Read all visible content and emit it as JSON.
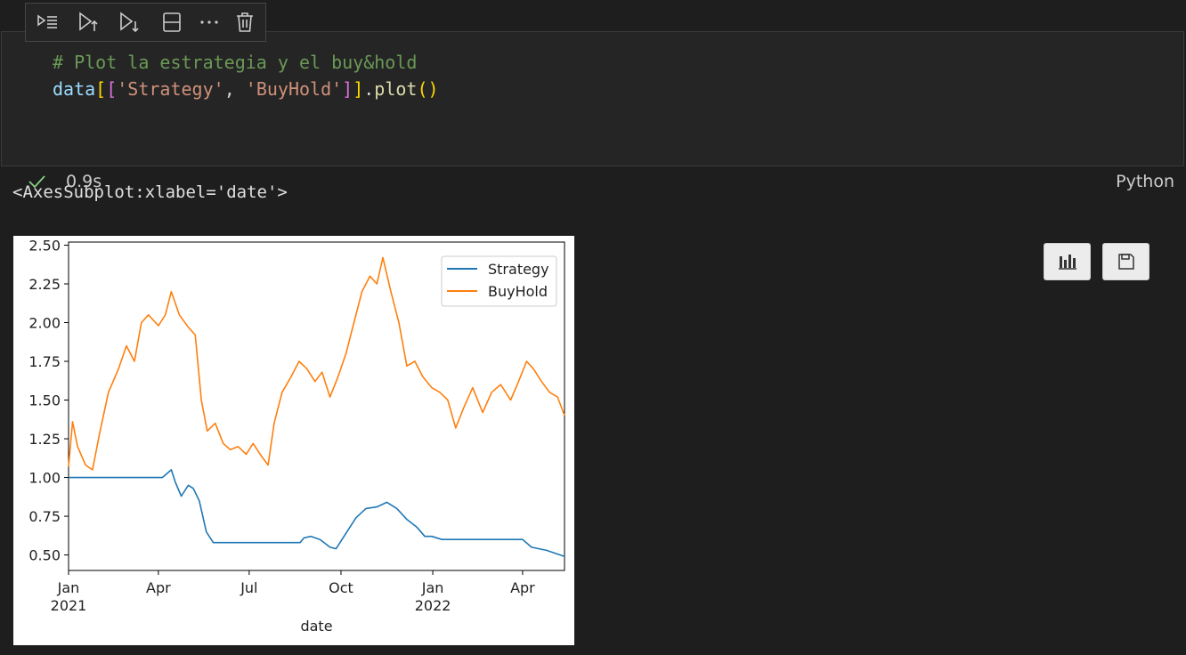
{
  "toolbar": {
    "items": [
      {
        "name": "execute-above-and-cell"
      },
      {
        "name": "execute-cell-and-above"
      },
      {
        "name": "execute-cell-and-below"
      },
      {
        "name": "split-cell"
      },
      {
        "name": "more-actions"
      },
      {
        "name": "delete-cell"
      }
    ]
  },
  "cell": {
    "code": {
      "comment": "# Plot la estrategia y el buy&hold",
      "var": "data",
      "open1": "[",
      "open2": "[",
      "str1": "'Strategy'",
      "comma": ", ",
      "str2": "'BuyHold'",
      "close2": "]",
      "close1": "]",
      "dot": ".",
      "fn": "plot",
      "paren": "()"
    },
    "status_time": "0.9s",
    "language": "Python",
    "colors": {
      "check": "#89d185"
    }
  },
  "output": {
    "text": "<AxesSubplot:xlabel='date'>"
  },
  "chart_data": {
    "type": "line",
    "xlabel": "date",
    "ylabel": "",
    "ylim": [
      0.4,
      2.52
    ],
    "yticks": [
      "0.50",
      "0.75",
      "1.00",
      "1.25",
      "1.50",
      "1.75",
      "2.00",
      "2.25",
      "2.50"
    ],
    "xticks": [
      {
        "label": "Jan",
        "sub": "2021",
        "date": "2021-01-01"
      },
      {
        "label": "Apr",
        "sub": "",
        "date": "2021-04-01"
      },
      {
        "label": "Jul",
        "sub": "",
        "date": "2021-07-01"
      },
      {
        "label": "Oct",
        "sub": "",
        "date": "2021-10-01"
      },
      {
        "label": "Jan",
        "sub": "2022",
        "date": "2022-01-01"
      },
      {
        "label": "Apr",
        "sub": "",
        "date": "2022-04-01"
      }
    ],
    "xlim": [
      "2021-01-01",
      "2022-05-13"
    ],
    "legend": "top-right",
    "grid": false,
    "series": [
      {
        "name": "Strategy",
        "color": "#1f77b4",
        "x": [
          "2021-01-01",
          "2021-02-15",
          "2021-04-05",
          "2021-04-14",
          "2021-04-18",
          "2021-04-24",
          "2021-05-01",
          "2021-05-06",
          "2021-05-12",
          "2021-05-19",
          "2021-05-26",
          "2021-06-10",
          "2021-07-15",
          "2021-08-21",
          "2021-08-25",
          "2021-09-01",
          "2021-09-10",
          "2021-09-20",
          "2021-09-26",
          "2021-10-06",
          "2021-10-16",
          "2021-10-26",
          "2021-11-06",
          "2021-11-16",
          "2021-11-26",
          "2021-12-06",
          "2021-12-16",
          "2021-12-24",
          "2021-12-31",
          "2022-01-10",
          "2022-02-15",
          "2022-03-20",
          "2022-04-01",
          "2022-04-10",
          "2022-04-25",
          "2022-05-13"
        ],
        "y": [
          1.0,
          1.0,
          1.0,
          1.05,
          0.97,
          0.88,
          0.95,
          0.93,
          0.85,
          0.65,
          0.58,
          0.58,
          0.58,
          0.58,
          0.61,
          0.62,
          0.6,
          0.55,
          0.54,
          0.64,
          0.74,
          0.8,
          0.81,
          0.84,
          0.8,
          0.73,
          0.68,
          0.62,
          0.62,
          0.6,
          0.6,
          0.6,
          0.6,
          0.55,
          0.53,
          0.49
        ]
      },
      {
        "name": "BuyHold",
        "color": "#ff7f0e",
        "x": [
          "2021-01-01",
          "2021-01-05",
          "2021-01-10",
          "2021-01-18",
          "2021-01-25",
          "2021-02-01",
          "2021-02-10",
          "2021-02-20",
          "2021-02-28",
          "2021-03-08",
          "2021-03-15",
          "2021-03-22",
          "2021-04-01",
          "2021-04-08",
          "2021-04-14",
          "2021-04-22",
          "2021-05-01",
          "2021-05-08",
          "2021-05-14",
          "2021-05-20",
          "2021-05-28",
          "2021-06-05",
          "2021-06-12",
          "2021-06-20",
          "2021-06-28",
          "2021-07-05",
          "2021-07-12",
          "2021-07-20",
          "2021-07-26",
          "2021-08-03",
          "2021-08-12",
          "2021-08-20",
          "2021-08-28",
          "2021-09-05",
          "2021-09-12",
          "2021-09-20",
          "2021-09-28",
          "2021-10-06",
          "2021-10-14",
          "2021-10-22",
          "2021-10-30",
          "2021-11-06",
          "2021-11-12",
          "2021-11-20",
          "2021-11-28",
          "2021-12-06",
          "2021-12-14",
          "2021-12-22",
          "2021-12-31",
          "2022-01-08",
          "2022-01-16",
          "2022-01-24",
          "2022-02-01",
          "2022-02-10",
          "2022-02-20",
          "2022-03-01",
          "2022-03-10",
          "2022-03-20",
          "2022-03-28",
          "2022-04-05",
          "2022-04-12",
          "2022-04-20",
          "2022-04-28",
          "2022-05-06",
          "2022-05-13"
        ],
        "y": [
          1.07,
          1.36,
          1.2,
          1.08,
          1.05,
          1.28,
          1.55,
          1.7,
          1.85,
          1.75,
          2.0,
          2.05,
          1.98,
          2.05,
          2.2,
          2.05,
          1.97,
          1.92,
          1.5,
          1.3,
          1.35,
          1.22,
          1.18,
          1.2,
          1.15,
          1.22,
          1.15,
          1.08,
          1.35,
          1.55,
          1.65,
          1.75,
          1.7,
          1.62,
          1.68,
          1.52,
          1.65,
          1.8,
          2.0,
          2.2,
          2.3,
          2.25,
          2.42,
          2.2,
          2.0,
          1.72,
          1.75,
          1.65,
          1.58,
          1.55,
          1.5,
          1.32,
          1.45,
          1.58,
          1.42,
          1.55,
          1.6,
          1.5,
          1.62,
          1.75,
          1.7,
          1.62,
          1.55,
          1.52,
          1.4
        ]
      }
    ]
  }
}
